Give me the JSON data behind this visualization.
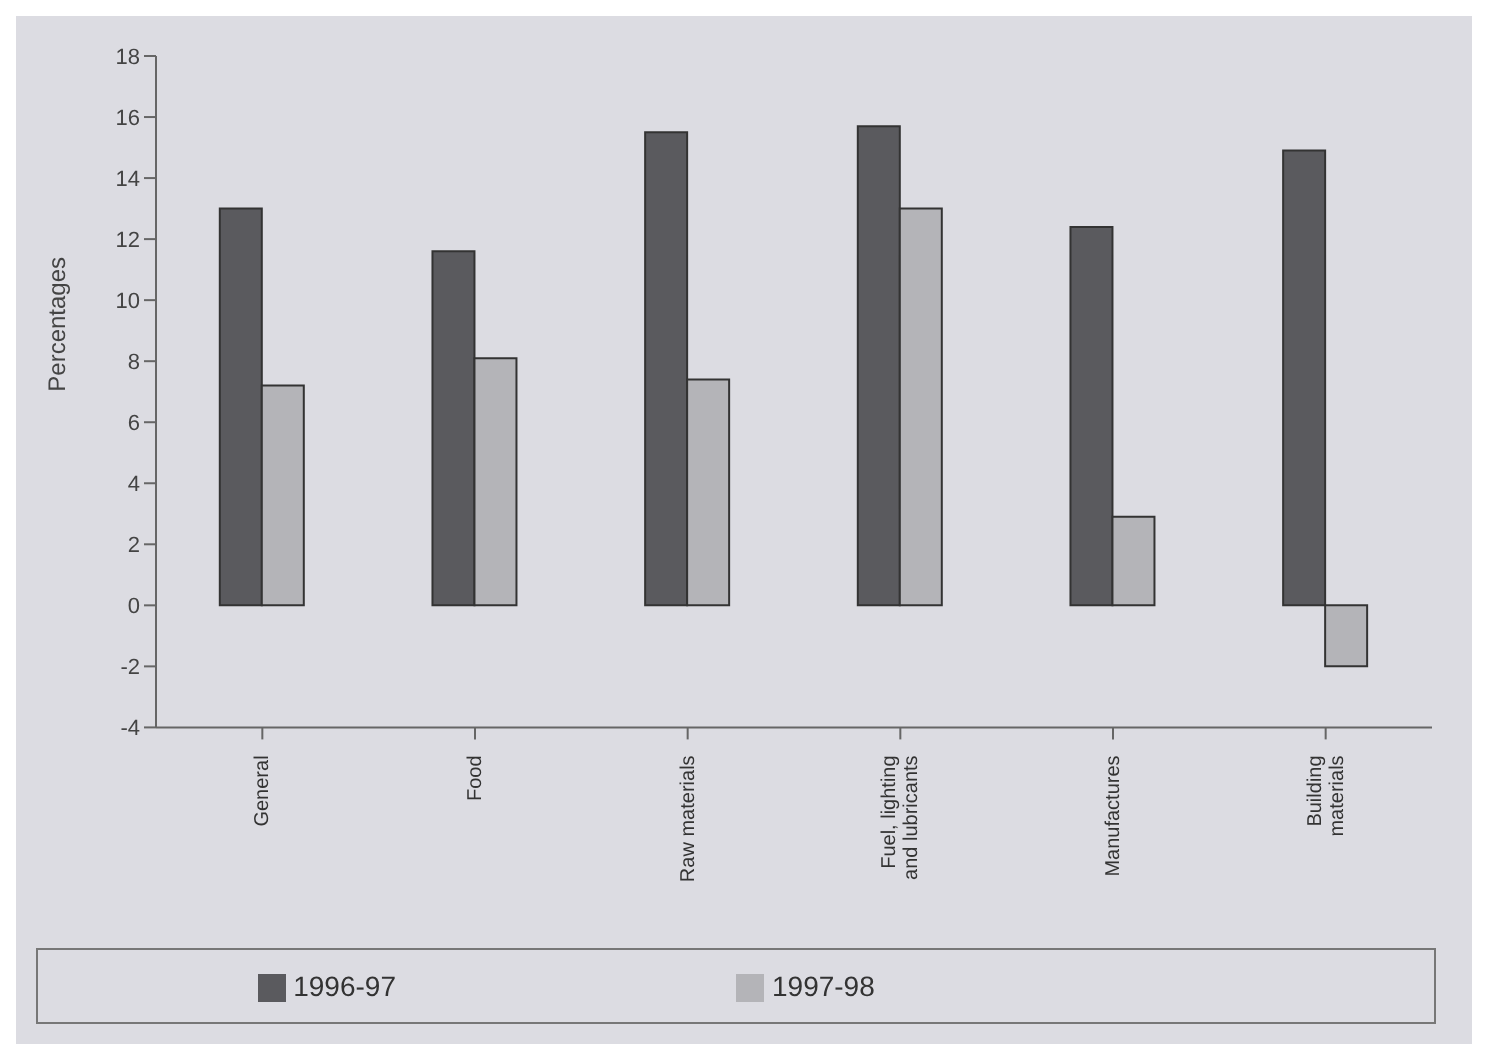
{
  "chart_data": {
    "type": "bar",
    "ylabel": "Percentages",
    "categories": [
      "General",
      "Food",
      "Raw materials",
      "Fuel, lighting and lubricants",
      "Manufactures",
      "Building materials"
    ],
    "series": [
      {
        "name": "1996-97",
        "color": "#5a5a5e",
        "values": [
          13.0,
          11.6,
          15.5,
          15.7,
          12.4,
          14.9
        ]
      },
      {
        "name": "1997-98",
        "color": "#b4b4b8",
        "values": [
          7.2,
          8.1,
          7.4,
          13.0,
          2.9,
          -2.0
        ]
      }
    ],
    "ylim": [
      -4,
      18
    ],
    "yticks": [
      -4,
      -2,
      0,
      2,
      4,
      6,
      8,
      10,
      12,
      14,
      16,
      18
    ],
    "legend": "bottom"
  }
}
